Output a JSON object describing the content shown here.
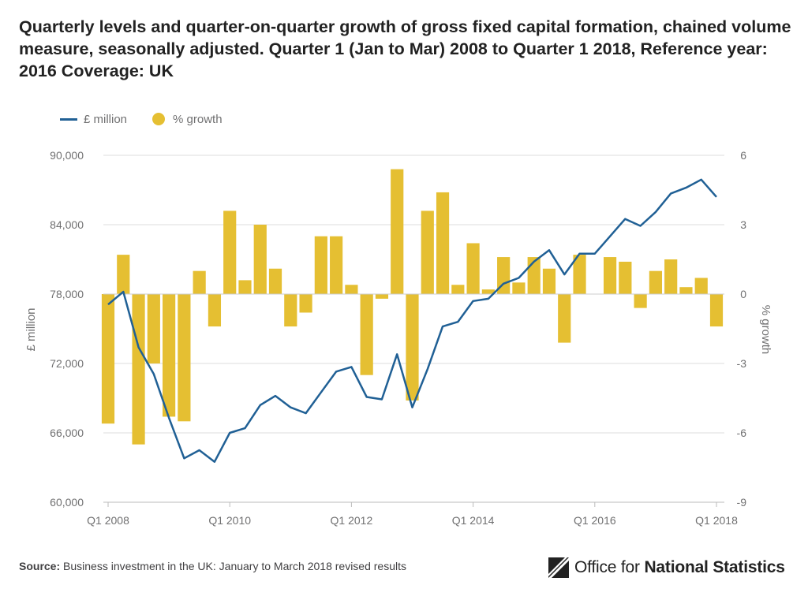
{
  "title": "Quarterly levels and quarter-on-quarter growth of gross fixed capital formation, chained volume measure, seasonally adjusted. Quarter 1 (Jan to Mar) 2008 to Quarter 1 2018, Reference year: 2016 Coverage: UK",
  "legend": {
    "line_label": "£ million",
    "bar_label": "% growth"
  },
  "colors": {
    "line": "#206095",
    "bar": "#e5bf32",
    "grid": "#dedede",
    "text": "#707071",
    "axis": "#bbbbbb"
  },
  "chart_data": {
    "type": "bar+line",
    "title": "Quarterly levels and quarter-on-quarter growth of gross fixed capital formation, chained volume measure, seasonally adjusted. Quarter 1 (Jan to Mar) 2008 to Quarter 1 2018, Reference year: 2016 Coverage: UK",
    "categories": [
      "Q1 2008",
      "Q2 2008",
      "Q3 2008",
      "Q4 2008",
      "Q1 2009",
      "Q2 2009",
      "Q3 2009",
      "Q4 2009",
      "Q1 2010",
      "Q2 2010",
      "Q3 2010",
      "Q4 2010",
      "Q1 2011",
      "Q2 2011",
      "Q3 2011",
      "Q4 2011",
      "Q1 2012",
      "Q2 2012",
      "Q3 2012",
      "Q4 2012",
      "Q1 2013",
      "Q2 2013",
      "Q3 2013",
      "Q4 2013",
      "Q1 2014",
      "Q2 2014",
      "Q3 2014",
      "Q4 2014",
      "Q1 2015",
      "Q2 2015",
      "Q3 2015",
      "Q4 2015",
      "Q1 2016",
      "Q2 2016",
      "Q3 2016",
      "Q4 2016",
      "Q1 2017",
      "Q2 2017",
      "Q3 2017",
      "Q4 2017",
      "Q1 2018"
    ],
    "x_tick_labels": [
      "Q1 2008",
      "Q1 2010",
      "Q1 2012",
      "Q1 2014",
      "Q1 2016",
      "Q1 2018"
    ],
    "series": [
      {
        "name": "£ million",
        "type": "line",
        "axis": "left",
        "values": [
          77100,
          78200,
          73400,
          71100,
          67300,
          63800,
          64500,
          63500,
          66000,
          66400,
          68400,
          69200,
          68200,
          67700,
          69500,
          71300,
          71700,
          69100,
          68900,
          72800,
          68200,
          71500,
          75200,
          75600,
          77400,
          77600,
          78900,
          79400,
          80800,
          81800,
          79700,
          81500,
          81500,
          83000,
          84500,
          83900,
          85100,
          86700,
          87200,
          87900,
          86400
        ]
      },
      {
        "name": "% growth",
        "type": "bar",
        "axis": "right",
        "values": [
          -5.6,
          1.7,
          -6.5,
          -3.0,
          -5.3,
          -5.5,
          1.0,
          -1.4,
          3.6,
          0.6,
          3.0,
          1.1,
          -1.4,
          -0.8,
          2.5,
          2.5,
          0.4,
          -3.5,
          -0.2,
          5.4,
          -4.6,
          3.6,
          4.4,
          0.4,
          2.2,
          0.2,
          1.6,
          0.5,
          1.6,
          1.1,
          -2.1,
          1.7,
          0.0,
          1.6,
          1.4,
          -0.6,
          1.0,
          1.5,
          0.3,
          0.7,
          -1.4
        ]
      }
    ],
    "y_left": {
      "label": "£ million",
      "ylim": [
        60000,
        90000
      ],
      "ticks": [
        60000,
        66000,
        72000,
        78000,
        84000,
        90000
      ],
      "tick_labels": [
        "60,000",
        "66,000",
        "72,000",
        "78,000",
        "84,000",
        "90,000"
      ]
    },
    "y_right": {
      "label": "% growth",
      "ylim": [
        -9,
        6
      ],
      "ticks": [
        -9,
        -6,
        -3,
        0,
        3,
        6
      ],
      "tick_labels": [
        "-9",
        "-6",
        "-3",
        "0",
        "3",
        "6"
      ]
    },
    "grid": true,
    "legend_position": "top-left"
  },
  "footer": {
    "source_label": "Source:",
    "source_text": "Business investment in the UK: January to March 2018 revised results"
  },
  "logo": {
    "text_light": "Office for",
    "text_bold": "National Statistics"
  }
}
